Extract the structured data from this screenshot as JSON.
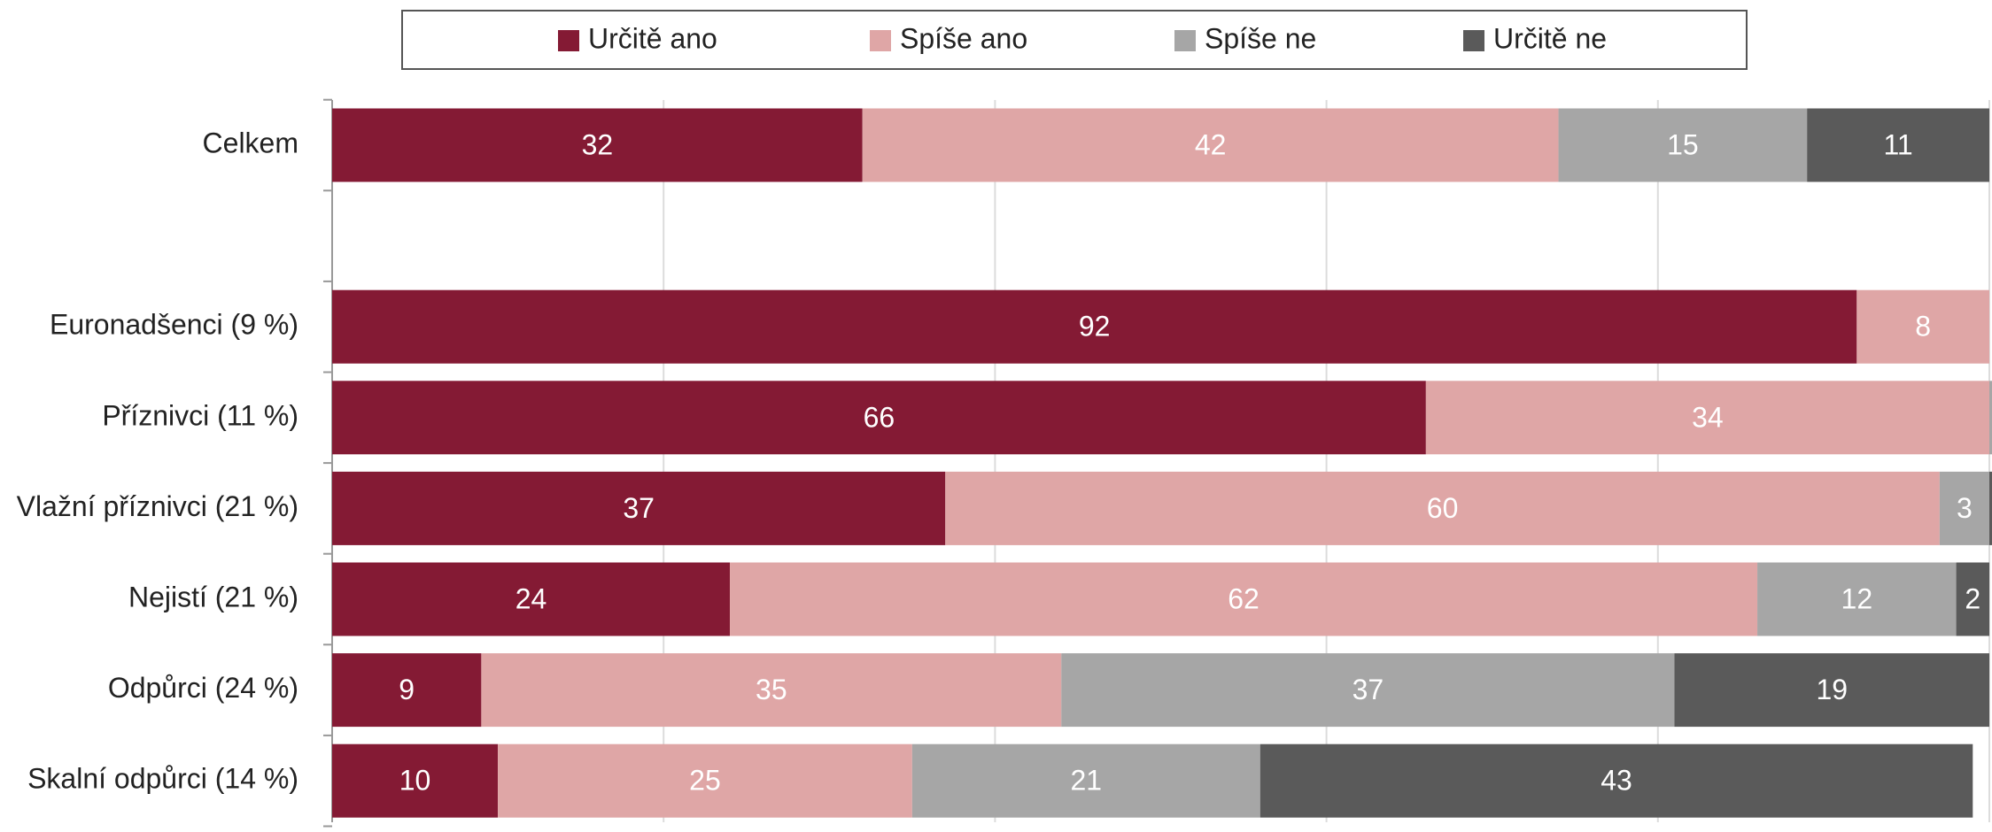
{
  "chart_data": {
    "type": "stacked_barh",
    "categories": [
      "Celkem",
      null,
      "Euronadšenci (9 %)",
      "Příznivci (11 %)",
      "Vlažní příznivci (21 %)",
      "Nejistí (21 %)",
      "Odpůrci (24 %)",
      "Skalní odpůrci (14 %)"
    ],
    "series": [
      {
        "name": "Určitě ano",
        "color": "#841a34",
        "values": [
          32,
          null,
          92,
          66,
          37,
          24,
          9,
          10
        ]
      },
      {
        "name": "Spíše ano",
        "color": "#dfa6a6",
        "values": [
          42,
          null,
          8,
          34,
          60,
          62,
          35,
          25
        ]
      },
      {
        "name": "Spíše ne",
        "color": "#a6a6a6",
        "values": [
          15,
          null,
          0,
          0.3,
          3,
          12,
          37,
          21
        ]
      },
      {
        "name": "Určitě ne",
        "color": "#5a5a5a",
        "values": [
          11,
          null,
          0,
          0,
          1,
          2,
          19,
          43
        ]
      }
    ],
    "xlim": [
      0,
      100
    ],
    "xticks": [
      0,
      20,
      40,
      60,
      80,
      100
    ],
    "grid": true,
    "legend": "top"
  }
}
